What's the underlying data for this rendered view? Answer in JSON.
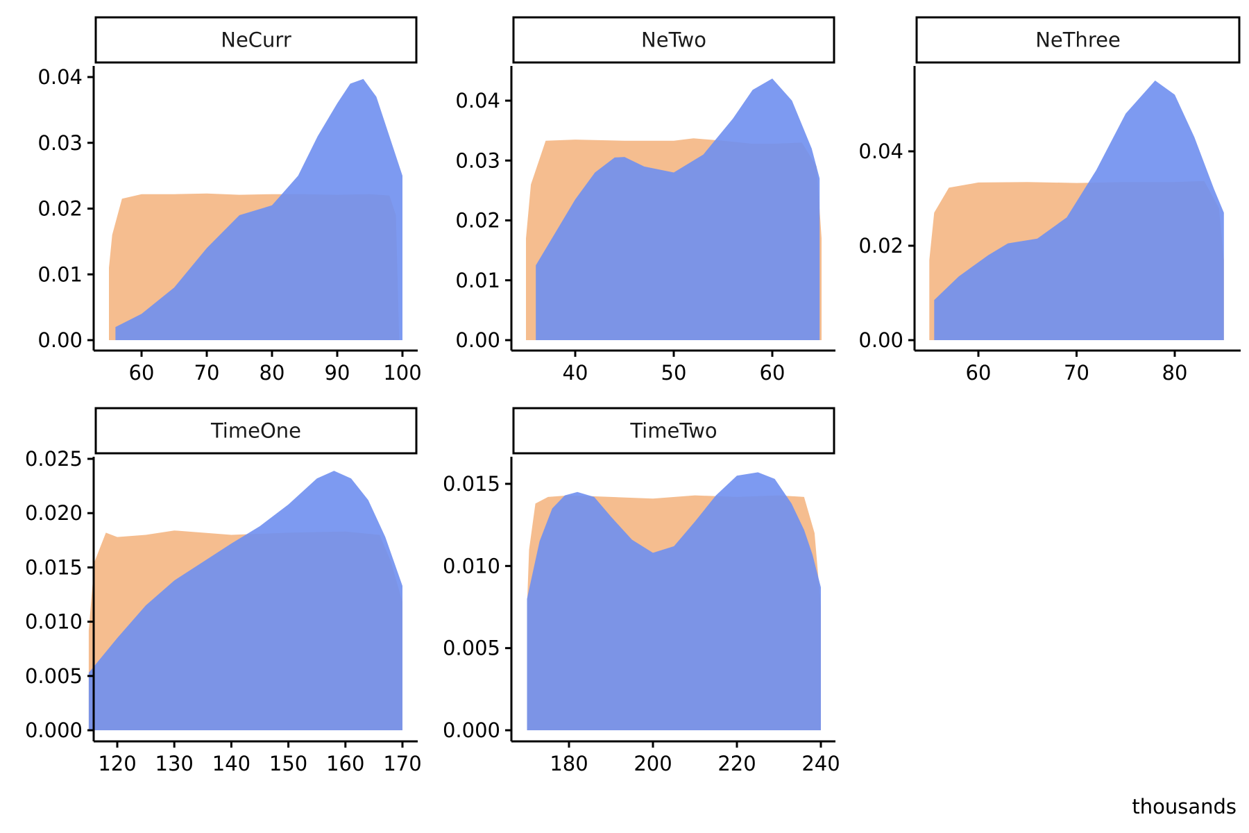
{
  "colors": {
    "prior": "#f5bd8f",
    "posterior": "#6f8ff0",
    "axis": "#000000",
    "strip_border": "#000000"
  },
  "caption": "thousands",
  "chart_data": [
    {
      "type": "area",
      "title": "NeCurr",
      "xlim": [
        55,
        100
      ],
      "ylim": [
        0,
        0.04
      ],
      "x_ticks": [
        60,
        70,
        80,
        90,
        100
      ],
      "x_tick_labels": [
        "60",
        "70",
        "80",
        "90",
        "100"
      ],
      "y_ticks": [
        0.0,
        0.01,
        0.02,
        0.03,
        0.04
      ],
      "y_tick_labels": [
        "0.00",
        "0.01",
        "0.02",
        "0.03",
        "0.04"
      ],
      "series": [
        {
          "color": "prior",
          "x": [
            55,
            55.5,
            57,
            60,
            65,
            70,
            75,
            80,
            85,
            90,
            95,
            98,
            99,
            99.5
          ],
          "y": [
            0.011,
            0.016,
            0.0215,
            0.0222,
            0.0222,
            0.0223,
            0.0221,
            0.0222,
            0.0222,
            0.0221,
            0.0222,
            0.022,
            0.019,
            0.0
          ]
        },
        {
          "color": "posterior",
          "x": [
            56,
            60,
            65,
            70,
            75,
            80,
            84,
            87,
            90,
            92,
            94,
            96,
            98,
            100
          ],
          "y": [
            0.002,
            0.004,
            0.008,
            0.014,
            0.019,
            0.0205,
            0.025,
            0.031,
            0.036,
            0.039,
            0.0397,
            0.037,
            0.031,
            0.025
          ]
        }
      ]
    },
    {
      "type": "area",
      "title": "NeTwo",
      "xlim": [
        35,
        65
      ],
      "ylim": [
        0,
        0.045
      ],
      "x_ticks": [
        40,
        50,
        60
      ],
      "x_tick_labels": [
        "40",
        "50",
        "60"
      ],
      "y_ticks": [
        0.0,
        0.01,
        0.02,
        0.03,
        0.04
      ],
      "y_tick_labels": [
        "0.00",
        "0.01",
        "0.02",
        "0.03",
        "0.04"
      ],
      "series": [
        {
          "color": "prior",
          "x": [
            35,
            35.5,
            37,
            40,
            45,
            50,
            52,
            55,
            58,
            60,
            63,
            64.5,
            65
          ],
          "y": [
            0.017,
            0.026,
            0.0333,
            0.0335,
            0.0333,
            0.0333,
            0.0337,
            0.0333,
            0.0328,
            0.0328,
            0.033,
            0.029,
            0.017
          ]
        },
        {
          "color": "posterior",
          "x": [
            36,
            38,
            40,
            42,
            44,
            45,
            47,
            50,
            53,
            56,
            58,
            60,
            62,
            64,
            64.8
          ],
          "y": [
            0.0125,
            0.018,
            0.0235,
            0.028,
            0.0305,
            0.0306,
            0.029,
            0.028,
            0.031,
            0.037,
            0.0418,
            0.0437,
            0.04,
            0.032,
            0.027
          ]
        }
      ]
    },
    {
      "type": "area",
      "title": "NeThree",
      "xlim": [
        55,
        85
      ],
      "ylim": [
        0,
        0.055
      ],
      "x_ticks": [
        60,
        70,
        80
      ],
      "x_tick_labels": [
        "60",
        "70",
        "80"
      ],
      "y_ticks": [
        0.0,
        0.02,
        0.04
      ],
      "y_tick_labels": [
        "0.00",
        "0.02",
        "0.04"
      ],
      "series": [
        {
          "color": "prior",
          "x": [
            55,
            55.5,
            57,
            60,
            65,
            70,
            75,
            80,
            83,
            84.5,
            85
          ],
          "y": [
            0.017,
            0.027,
            0.0323,
            0.0334,
            0.0335,
            0.0333,
            0.0335,
            0.0335,
            0.0337,
            0.028,
            0.017
          ]
        },
        {
          "color": "posterior",
          "x": [
            55.5,
            58,
            61,
            63,
            66,
            69,
            72,
            75,
            78,
            80,
            82,
            84,
            85
          ],
          "y": [
            0.0085,
            0.0135,
            0.018,
            0.0205,
            0.0215,
            0.026,
            0.036,
            0.048,
            0.055,
            0.052,
            0.043,
            0.032,
            0.027
          ]
        }
      ]
    },
    {
      "type": "area",
      "title": "TimeOne",
      "xlim": [
        115,
        170
      ],
      "ylim": [
        0,
        0.025
      ],
      "x_ticks": [
        120,
        130,
        140,
        150,
        160,
        170
      ],
      "x_tick_labels": [
        "120",
        "130",
        "140",
        "150",
        "160",
        "170"
      ],
      "y_ticks": [
        0.0,
        0.005,
        0.01,
        0.015,
        0.02,
        0.025
      ],
      "y_tick_labels": [
        "0.000",
        "0.005",
        "0.010",
        "0.015",
        "0.020",
        "0.025"
      ],
      "series": [
        {
          "color": "prior",
          "x": [
            115,
            116,
            118,
            120,
            125,
            130,
            140,
            150,
            160,
            166,
            168,
            170
          ],
          "y": [
            0.0092,
            0.0155,
            0.0182,
            0.0178,
            0.018,
            0.0184,
            0.018,
            0.0182,
            0.0183,
            0.018,
            0.0155,
            0.0118
          ]
        },
        {
          "color": "posterior",
          "x": [
            115,
            120,
            125,
            130,
            135,
            140,
            145,
            150,
            155,
            158,
            161,
            164,
            167,
            170
          ],
          "y": [
            0.0053,
            0.0085,
            0.0115,
            0.0138,
            0.0155,
            0.0172,
            0.0188,
            0.0208,
            0.0232,
            0.0239,
            0.0232,
            0.0212,
            0.0178,
            0.0133
          ]
        }
      ]
    },
    {
      "type": "area",
      "title": "TimeTwo",
      "xlim": [
        170,
        240
      ],
      "ylim": [
        0,
        0.017
      ],
      "x_ticks": [
        180,
        200,
        220,
        240
      ],
      "x_tick_labels": [
        "180",
        "200",
        "220",
        "240"
      ],
      "y_ticks": [
        0.0,
        0.005,
        0.01,
        0.015
      ],
      "y_tick_labels": [
        "0.000",
        "0.005",
        "0.010",
        "0.015"
      ],
      "series": [
        {
          "color": "prior",
          "x": [
            170,
            170.5,
            172,
            175,
            180,
            190,
            200,
            210,
            220,
            230,
            236,
            238.5,
            240
          ],
          "y": [
            0.0075,
            0.011,
            0.0138,
            0.0142,
            0.0143,
            0.0142,
            0.0141,
            0.0143,
            0.0142,
            0.0143,
            0.0142,
            0.012,
            0.0075
          ]
        },
        {
          "color": "posterior",
          "x": [
            170,
            173,
            176,
            179,
            182,
            186,
            190,
            195,
            200,
            205,
            210,
            215,
            220,
            225,
            229,
            233,
            236,
            238,
            240
          ],
          "y": [
            0.008,
            0.0115,
            0.0135,
            0.0143,
            0.0145,
            0.0142,
            0.013,
            0.0116,
            0.0108,
            0.0112,
            0.0127,
            0.0143,
            0.0155,
            0.0157,
            0.0153,
            0.0138,
            0.0122,
            0.0107,
            0.0087
          ]
        }
      ]
    }
  ]
}
